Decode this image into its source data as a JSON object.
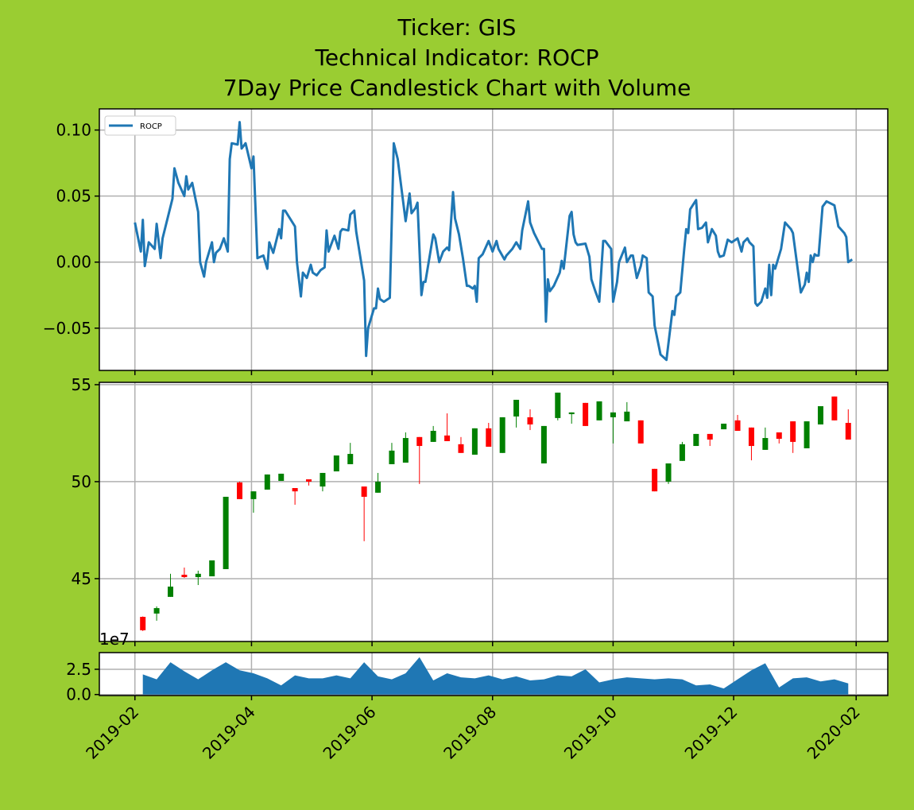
{
  "chart_data": [
    {
      "type": "line",
      "title": "Ticker: GIS\nTechnical Indicator: ROCP\n7Day Price Candlestick Chart with Volume",
      "legend": "upper left",
      "grid": true,
      "series": [
        {
          "name": "ROCP",
          "color": "#1f77b4",
          "x": [
            "2019-02-01",
            "2019-02-04",
            "2019-02-05",
            "2019-02-06",
            "2019-02-08",
            "2019-02-11",
            "2019-02-12",
            "2019-02-14",
            "2019-02-15",
            "2019-02-20",
            "2019-02-21",
            "2019-02-23",
            "2019-02-26",
            "2019-02-27",
            "2019-02-28",
            "2019-03-02",
            "2019-03-05",
            "2019-03-06",
            "2019-03-08",
            "2019-03-09",
            "2019-03-12",
            "2019-03-13",
            "2019-03-14",
            "2019-03-16",
            "2019-03-18",
            "2019-03-20",
            "2019-03-21",
            "2019-03-22",
            "2019-03-25",
            "2019-03-26",
            "2019-03-27",
            "2019-03-29",
            "2019-04-01",
            "2019-04-02",
            "2019-04-04",
            "2019-04-07",
            "2019-04-09",
            "2019-04-10",
            "2019-04-12",
            "2019-04-15",
            "2019-04-16",
            "2019-04-17",
            "2019-04-18",
            "2019-04-23",
            "2019-04-24",
            "2019-04-26",
            "2019-04-27",
            "2019-04-29",
            "2019-05-01",
            "2019-05-02",
            "2019-05-04",
            "2019-05-06",
            "2019-05-08",
            "2019-05-09",
            "2019-05-10",
            "2019-05-12",
            "2019-05-13",
            "2019-05-15",
            "2019-05-16",
            "2019-05-17",
            "2019-05-20",
            "2019-05-21",
            "2019-05-23",
            "2019-05-24",
            "2019-05-28",
            "2019-05-29",
            "2019-05-30",
            "2019-06-02",
            "2019-06-03",
            "2019-06-04",
            "2019-06-05",
            "2019-06-07",
            "2019-06-10",
            "2019-06-12",
            "2019-06-14",
            "2019-06-18",
            "2019-06-20",
            "2019-06-21",
            "2019-06-23",
            "2019-06-24",
            "2019-06-26",
            "2019-06-27",
            "2019-06-28",
            "2019-07-02",
            "2019-07-03",
            "2019-07-05",
            "2019-07-07",
            "2019-07-09",
            "2019-07-10",
            "2019-07-12",
            "2019-07-13",
            "2019-07-15",
            "2019-07-17",
            "2019-07-19",
            "2019-07-20",
            "2019-07-22",
            "2019-07-23",
            "2019-07-24",
            "2019-07-25",
            "2019-07-27",
            "2019-07-30",
            "2019-07-31",
            "2019-08-01",
            "2019-08-03",
            "2019-08-04",
            "2019-08-07",
            "2019-08-08",
            "2019-08-11",
            "2019-08-13",
            "2019-08-15",
            "2019-08-16",
            "2019-08-19",
            "2019-08-20",
            "2019-08-22",
            "2019-08-26",
            "2019-08-27",
            "2019-08-28",
            "2019-08-29",
            "2019-08-30",
            "2019-09-01",
            "2019-09-04",
            "2019-09-05",
            "2019-09-06",
            "2019-09-09",
            "2019-09-10",
            "2019-09-11",
            "2019-09-12",
            "2019-09-13",
            "2019-09-17",
            "2019-09-19",
            "2019-09-20",
            "2019-09-22",
            "2019-09-24",
            "2019-09-26",
            "2019-09-27",
            "2019-09-30",
            "2019-10-01",
            "2019-10-03",
            "2019-10-04",
            "2019-10-07",
            "2019-10-08",
            "2019-10-10",
            "2019-10-11",
            "2019-10-13",
            "2019-10-15",
            "2019-10-16",
            "2019-10-18",
            "2019-10-19",
            "2019-10-21",
            "2019-10-22",
            "2019-10-25",
            "2019-10-28",
            "2019-10-31",
            "2019-11-01",
            "2019-11-02",
            "2019-11-04",
            "2019-11-06",
            "2019-11-07",
            "2019-11-08",
            "2019-11-09",
            "2019-11-12",
            "2019-11-13",
            "2019-11-15",
            "2019-11-17",
            "2019-11-18",
            "2019-11-20",
            "2019-11-22",
            "2019-11-23",
            "2019-11-24",
            "2019-11-26",
            "2019-11-28",
            "2019-11-30",
            "2019-12-03",
            "2019-12-05",
            "2019-12-06",
            "2019-12-08",
            "2019-12-09",
            "2019-12-11",
            "2019-12-12",
            "2019-12-13",
            "2019-12-15",
            "2019-12-17",
            "2019-12-18",
            "2019-12-19",
            "2019-12-20",
            "2019-12-21",
            "2019-12-22",
            "2019-12-25",
            "2019-12-27",
            "2019-12-30",
            "2019-12-31",
            "2020-01-04",
            "2020-01-06",
            "2020-01-07",
            "2020-01-08",
            "2020-01-09",
            "2020-01-10",
            "2020-01-11",
            "2020-01-12",
            "2020-01-13",
            "2020-01-15",
            "2020-01-17",
            "2020-01-21",
            "2020-01-23",
            "2020-01-26",
            "2020-01-27",
            "2020-01-28",
            "2020-01-30"
          ],
          "values": [
            0.03,
            0.008,
            0.032,
            -0.003,
            0.015,
            0.01,
            0.029,
            0.003,
            0.018,
            0.048,
            0.071,
            0.06,
            0.05,
            0.065,
            0.055,
            0.06,
            0.038,
            0.0,
            -0.011,
            0.0,
            0.015,
            0.0,
            0.007,
            0.01,
            0.018,
            0.008,
            0.078,
            0.09,
            0.089,
            0.106,
            0.086,
            0.09,
            0.071,
            0.08,
            0.003,
            0.005,
            -0.005,
            0.015,
            0.007,
            0.025,
            0.018,
            0.039,
            0.039,
            0.027,
            0.0,
            -0.026,
            -0.008,
            -0.012,
            -0.002,
            -0.008,
            -0.01,
            -0.006,
            -0.004,
            0.024,
            0.008,
            0.016,
            0.02,
            0.01,
            0.023,
            0.025,
            0.024,
            0.036,
            0.039,
            0.023,
            -0.014,
            -0.071,
            -0.05,
            -0.035,
            -0.035,
            -0.02,
            -0.028,
            -0.03,
            -0.027,
            0.09,
            0.078,
            0.031,
            0.052,
            0.037,
            0.041,
            0.045,
            -0.025,
            -0.015,
            -0.015,
            0.021,
            0.018,
            0.0,
            0.008,
            0.011,
            0.009,
            0.053,
            0.033,
            0.021,
            0.003,
            -0.018,
            -0.018,
            -0.02,
            -0.018,
            -0.03,
            0.003,
            0.006,
            0.016,
            0.012,
            0.008,
            0.016,
            0.01,
            0.002,
            0.005,
            0.01,
            0.015,
            0.01,
            0.024,
            0.046,
            0.03,
            0.022,
            0.01,
            0.01,
            -0.045,
            -0.013,
            -0.022,
            -0.018,
            -0.008,
            0.001,
            -0.005,
            0.035,
            0.038,
            0.021,
            0.015,
            0.013,
            0.014,
            0.004,
            -0.013,
            -0.022,
            -0.03,
            0.016,
            0.016,
            0.01,
            -0.03,
            -0.015,
            0.0,
            0.011,
            0.0,
            0.005,
            0.005,
            -0.012,
            -0.003,
            0.005,
            0.003,
            -0.023,
            -0.026,
            -0.048,
            -0.07,
            -0.074,
            -0.037,
            -0.04,
            -0.026,
            -0.023,
            0.01,
            0.025,
            0.022,
            0.04,
            0.047,
            0.025,
            0.026,
            0.03,
            0.015,
            0.025,
            0.02,
            0.008,
            0.004,
            0.005,
            0.017,
            0.015,
            0.018,
            0.008,
            0.015,
            0.018,
            0.015,
            0.012,
            -0.031,
            -0.033,
            -0.03,
            -0.02,
            -0.027,
            -0.002,
            -0.025,
            -0.002,
            -0.005,
            0.01,
            0.03,
            0.025,
            0.022,
            -0.023,
            -0.017,
            -0.008,
            -0.015,
            0.005,
            0.0,
            0.006,
            0.005,
            0.005,
            0.042,
            0.046,
            0.043,
            0.027,
            0.022,
            0.019,
            0.0,
            0.002
          ]
        }
      ],
      "ylim": [
        -0.082,
        0.116
      ],
      "yticks": [
        {
          "value": -0.05,
          "label": "−0.05"
        },
        {
          "value": 0,
          "label": "0.00"
        },
        {
          "value": 0.05,
          "label": "0.05"
        },
        {
          "value": 0.1,
          "label": "0.10"
        }
      ]
    },
    {
      "type": "candlestick",
      "grid": true,
      "up_color": "green",
      "down_color": "red",
      "x": [
        "2019-02-05",
        "2019-02-12",
        "2019-02-19",
        "2019-02-26",
        "2019-03-05",
        "2019-03-12",
        "2019-03-19",
        "2019-03-26",
        "2019-04-02",
        "2019-04-09",
        "2019-04-16",
        "2019-04-23",
        "2019-04-30",
        "2019-05-07",
        "2019-05-14",
        "2019-05-21",
        "2019-05-28",
        "2019-06-04",
        "2019-06-11",
        "2019-06-18",
        "2019-06-25",
        "2019-07-02",
        "2019-07-09",
        "2019-07-16",
        "2019-07-23",
        "2019-07-30",
        "2019-08-06",
        "2019-08-13",
        "2019-08-20",
        "2019-08-27",
        "2019-09-03",
        "2019-09-10",
        "2019-09-17",
        "2019-09-24",
        "2019-10-01",
        "2019-10-08",
        "2019-10-15",
        "2019-10-22",
        "2019-10-29",
        "2019-11-05",
        "2019-11-12",
        "2019-11-19",
        "2019-11-26",
        "2019-12-03",
        "2019-12-10",
        "2019-12-17",
        "2019-12-24",
        "2019-12-31",
        "2020-01-07",
        "2020-01-14",
        "2020-01-21",
        "2020-01-28"
      ],
      "open": [
        43.03,
        43.2,
        44.06,
        45.2,
        45.08,
        45.12,
        45.49,
        49.96,
        49.1,
        49.59,
        50.04,
        49.67,
        50.12,
        49.75,
        50.53,
        50.9,
        49.75,
        49.43,
        50.9,
        50.98,
        52.3,
        52.05,
        52.38,
        51.93,
        51.39,
        52.75,
        51.48,
        53.36,
        53.32,
        50.94,
        53.28,
        53.48,
        54.06,
        53.16,
        53.32,
        53.11,
        53.16,
        50.66,
        50.0,
        51.07,
        51.84,
        52.46,
        52.7,
        53.16,
        52.79,
        51.64,
        52.54,
        53.11,
        51.72,
        52.95,
        54.39,
        53.03
      ],
      "high": [
        43.05,
        43.57,
        45.25,
        45.57,
        45.41,
        45.94,
        49.22,
        50.0,
        49.5,
        50.37,
        50.41,
        49.67,
        50.12,
        50.45,
        51.35,
        52.0,
        49.75,
        50.45,
        52.0,
        52.54,
        52.3,
        52.87,
        53.52,
        52.3,
        52.75,
        53.03,
        53.32,
        54.22,
        53.73,
        52.87,
        54.59,
        53.57,
        54.06,
        54.14,
        53.57,
        54.1,
        53.16,
        50.66,
        50.94,
        52.05,
        52.46,
        52.46,
        52.99,
        53.44,
        52.79,
        52.79,
        52.54,
        53.11,
        53.11,
        53.89,
        54.39,
        53.73
      ],
      "low": [
        42.3,
        42.83,
        44.06,
        45.04,
        44.67,
        45.12,
        45.49,
        49.1,
        48.4,
        49.59,
        50.04,
        48.81,
        49.8,
        49.5,
        50.53,
        50.9,
        46.93,
        49.43,
        50.9,
        50.98,
        49.88,
        52.05,
        52.09,
        51.48,
        51.39,
        51.8,
        51.48,
        52.79,
        52.66,
        50.94,
        53.16,
        52.99,
        52.87,
        53.16,
        51.97,
        53.11,
        51.97,
        49.5,
        49.88,
        51.07,
        51.84,
        51.84,
        52.7,
        52.62,
        51.1,
        51.64,
        51.97,
        51.48,
        51.72,
        52.95,
        53.16,
        52.17
      ],
      "close": [
        42.34,
        43.48,
        44.59,
        45.08,
        45.25,
        45.94,
        49.22,
        49.1,
        49.5,
        50.37,
        50.41,
        49.5,
        50.0,
        50.45,
        51.35,
        51.43,
        49.22,
        50.0,
        51.6,
        52.25,
        51.84,
        52.62,
        52.09,
        51.48,
        52.75,
        51.8,
        53.32,
        54.22,
        52.95,
        52.87,
        54.59,
        53.57,
        52.87,
        54.14,
        53.57,
        53.61,
        51.97,
        49.5,
        50.94,
        51.93,
        52.46,
        52.17,
        52.99,
        52.62,
        51.84,
        52.25,
        52.21,
        52.05,
        53.11,
        53.89,
        53.16,
        52.17
      ],
      "ylim": [
        41.76,
        55.12
      ],
      "yticks": [
        45,
        50,
        55
      ]
    },
    {
      "type": "area",
      "grid": true,
      "color": "#1f77b4",
      "offset_label": "1e7",
      "x": [
        "2019-02-05",
        "2019-02-12",
        "2019-02-19",
        "2019-02-26",
        "2019-03-05",
        "2019-03-12",
        "2019-03-19",
        "2019-03-26",
        "2019-04-02",
        "2019-04-09",
        "2019-04-16",
        "2019-04-23",
        "2019-04-30",
        "2019-05-07",
        "2019-05-14",
        "2019-05-21",
        "2019-05-28",
        "2019-06-04",
        "2019-06-11",
        "2019-06-18",
        "2019-06-25",
        "2019-07-02",
        "2019-07-09",
        "2019-07-16",
        "2019-07-23",
        "2019-07-30",
        "2019-08-06",
        "2019-08-13",
        "2019-08-20",
        "2019-08-27",
        "2019-09-03",
        "2019-09-10",
        "2019-09-17",
        "2019-09-24",
        "2019-10-01",
        "2019-10-08",
        "2019-10-15",
        "2019-10-22",
        "2019-10-29",
        "2019-11-05",
        "2019-11-12",
        "2019-11-19",
        "2019-11-26",
        "2019-12-03",
        "2019-12-10",
        "2019-12-17",
        "2019-12-24",
        "2019-12-31",
        "2020-01-07",
        "2020-01-14",
        "2020-01-21",
        "2020-01-28"
      ],
      "values": [
        2.0,
        1.5,
        3.2,
        2.3,
        1.5,
        2.4,
        3.2,
        2.4,
        2.1,
        1.6,
        0.9,
        1.9,
        1.6,
        1.6,
        1.9,
        1.6,
        3.2,
        1.8,
        1.5,
        2.1,
        3.7,
        1.4,
        2.1,
        1.7,
        1.6,
        1.9,
        1.5,
        1.8,
        1.4,
        1.5,
        1.9,
        1.8,
        2.5,
        1.2,
        1.5,
        1.7,
        1.6,
        1.5,
        1.6,
        1.5,
        0.9,
        1.0,
        0.6,
        1.5,
        2.4,
        3.1,
        0.7,
        1.6,
        1.7,
        1.3,
        1.5,
        1.1
      ],
      "ylim": [
        -0.1,
        4.15
      ],
      "yticks": [
        {
          "value": 0,
          "label": "0.0"
        },
        2.5
      ],
      "xlim": [
        "2019-01-14",
        "2020-02-17"
      ],
      "xticks": [
        "2019-02",
        "2019-04",
        "2019-06",
        "2019-08",
        "2019-10",
        "2019-12",
        "2020-02"
      ]
    }
  ]
}
